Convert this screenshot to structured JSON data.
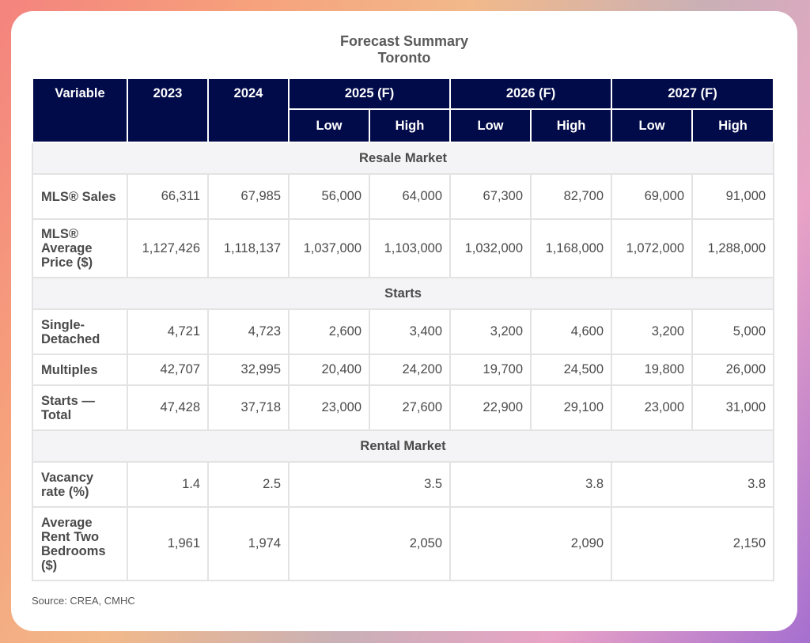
{
  "title": {
    "line1": "Forecast Summary",
    "line2": "Toronto"
  },
  "header": {
    "variable": "Variable",
    "years": [
      "2023",
      "2024"
    ],
    "forecast_years": [
      "2025 (F)",
      "2026 (F)",
      "2027 (F)"
    ],
    "low": "Low",
    "high": "High"
  },
  "sections": {
    "resale": "Resale Market",
    "starts": "Starts",
    "rental": "Rental Market"
  },
  "rows": {
    "mls_sales": {
      "label": "MLS® Sales",
      "values": [
        "66,311",
        "67,985",
        "56,000",
        "64,000",
        "67,300",
        "82,700",
        "69,000",
        "91,000"
      ]
    },
    "mls_price": {
      "label": "MLS® Average Price ($)",
      "values": [
        "1,127,426",
        "1,118,137",
        "1,037,000",
        "1,103,000",
        "1,032,000",
        "1,168,000",
        "1,072,000",
        "1,288,000"
      ]
    },
    "single": {
      "label": "Single-Detached",
      "values": [
        "4,721",
        "4,723",
        "2,600",
        "3,400",
        "3,200",
        "4,600",
        "3,200",
        "5,000"
      ]
    },
    "multiples": {
      "label": "Multiples",
      "values": [
        "42,707",
        "32,995",
        "20,400",
        "24,200",
        "19,700",
        "24,500",
        "19,800",
        "26,000"
      ]
    },
    "starts_total": {
      "label": "Starts — Total",
      "values": [
        "47,428",
        "37,718",
        "23,000",
        "27,600",
        "22,900",
        "29,100",
        "23,000",
        "31,000"
      ]
    },
    "vacancy": {
      "label": "Vacancy rate (%)",
      "values": [
        "1.4",
        "2.5",
        "3.5",
        "3.8",
        "3.8"
      ]
    },
    "rent": {
      "label": "Average Rent Two Bedrooms ($)",
      "values": [
        "1,961",
        "1,974",
        "2,050",
        "2,090",
        "2,150"
      ]
    }
  },
  "source": "Source: CREA, CMHC"
}
